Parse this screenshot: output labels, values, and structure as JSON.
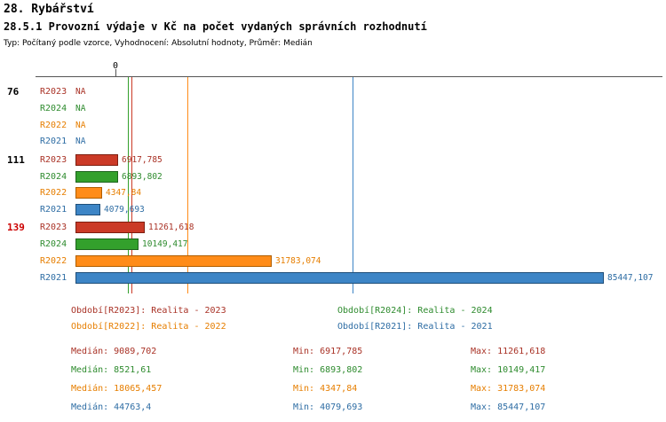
{
  "header": {
    "title": "28. Rybářství",
    "meta": "Typ: Počítaný podle vzorce, Vyhodnocení: Absolutní hodnoty, Průměr: Medián"
  },
  "colors": {
    "R2023": {
      "text": "#a93226",
      "bar": "#cb3a27",
      "border": "#7e1e10"
    },
    "R2024": {
      "text": "#2e8b2e",
      "bar": "#33a02c",
      "border": "#1d641d"
    },
    "R2022": {
      "text": "#e67e00",
      "bar": "#ff8c19",
      "border": "#b05e00"
    },
    "R2021": {
      "text": "#2e6da4",
      "bar": "#3d85c6",
      "border": "#1f4e79"
    }
  },
  "chart_data": {
    "type": "bar",
    "orientation": "horizontal",
    "title": "28.5.1 Provozní výdaje v Kč na počet vydaných správních rozhodnutí",
    "grid": false,
    "legend_position": "bottom",
    "value_axis": {
      "min": 0,
      "max": 85447.107,
      "zero_label": "0"
    },
    "groups": [
      {
        "label": "76",
        "label_color": "#000000",
        "bars": [
          {
            "series": "R2023",
            "value": null,
            "display": "NA"
          },
          {
            "series": "R2024",
            "value": null,
            "display": "NA"
          },
          {
            "series": "R2022",
            "value": null,
            "display": "NA"
          },
          {
            "series": "R2021",
            "value": null,
            "display": "NA"
          }
        ]
      },
      {
        "label": "111",
        "label_color": "#000000",
        "bars": [
          {
            "series": "R2023",
            "value": 6917.785,
            "display": "6917,785"
          },
          {
            "series": "R2024",
            "value": 6893.802,
            "display": "6893,802"
          },
          {
            "series": "R2022",
            "value": 4347.84,
            "display": "4347,84"
          },
          {
            "series": "R2021",
            "value": 4079.693,
            "display": "4079,693"
          }
        ]
      },
      {
        "label": "139",
        "label_color": "#cc0000",
        "bars": [
          {
            "series": "R2023",
            "value": 11261.618,
            "display": "11261,618"
          },
          {
            "series": "R2024",
            "value": 10149.417,
            "display": "10149,417"
          },
          {
            "series": "R2022",
            "value": 31783.074,
            "display": "31783,074"
          },
          {
            "series": "R2021",
            "value": 85447.107,
            "display": "85447,107"
          }
        ]
      }
    ],
    "medians": [
      {
        "series": "R2023",
        "value": 9089.702
      },
      {
        "series": "R2024",
        "value": 8521.61
      },
      {
        "series": "R2022",
        "value": 18065.457
      },
      {
        "series": "R2021",
        "value": 44763.4
      }
    ],
    "legend": [
      {
        "series": "R2023",
        "label": "Období[R2023]: Realita - 2023"
      },
      {
        "series": "R2024",
        "label": "Období[R2024]: Realita - 2024"
      },
      {
        "series": "R2022",
        "label": "Období[R2022]: Realita - 2022"
      },
      {
        "series": "R2021",
        "label": "Období[R2021]: Realita - 2021"
      }
    ],
    "stats": [
      {
        "series": "R2023",
        "median": "Medián: 9089,702",
        "min": "Min: 6917,785",
        "max": "Max: 11261,618"
      },
      {
        "series": "R2024",
        "median": "Medián: 8521,61",
        "min": "Min: 6893,802",
        "max": "Max: 10149,417"
      },
      {
        "series": "R2022",
        "median": "Medián: 18065,457",
        "min": "Min: 4347,84",
        "max": "Max: 31783,074"
      },
      {
        "series": "R2021",
        "median": "Medián: 44763,4",
        "min": "Min: 4079,693",
        "max": "Max: 85447,107"
      }
    ]
  }
}
